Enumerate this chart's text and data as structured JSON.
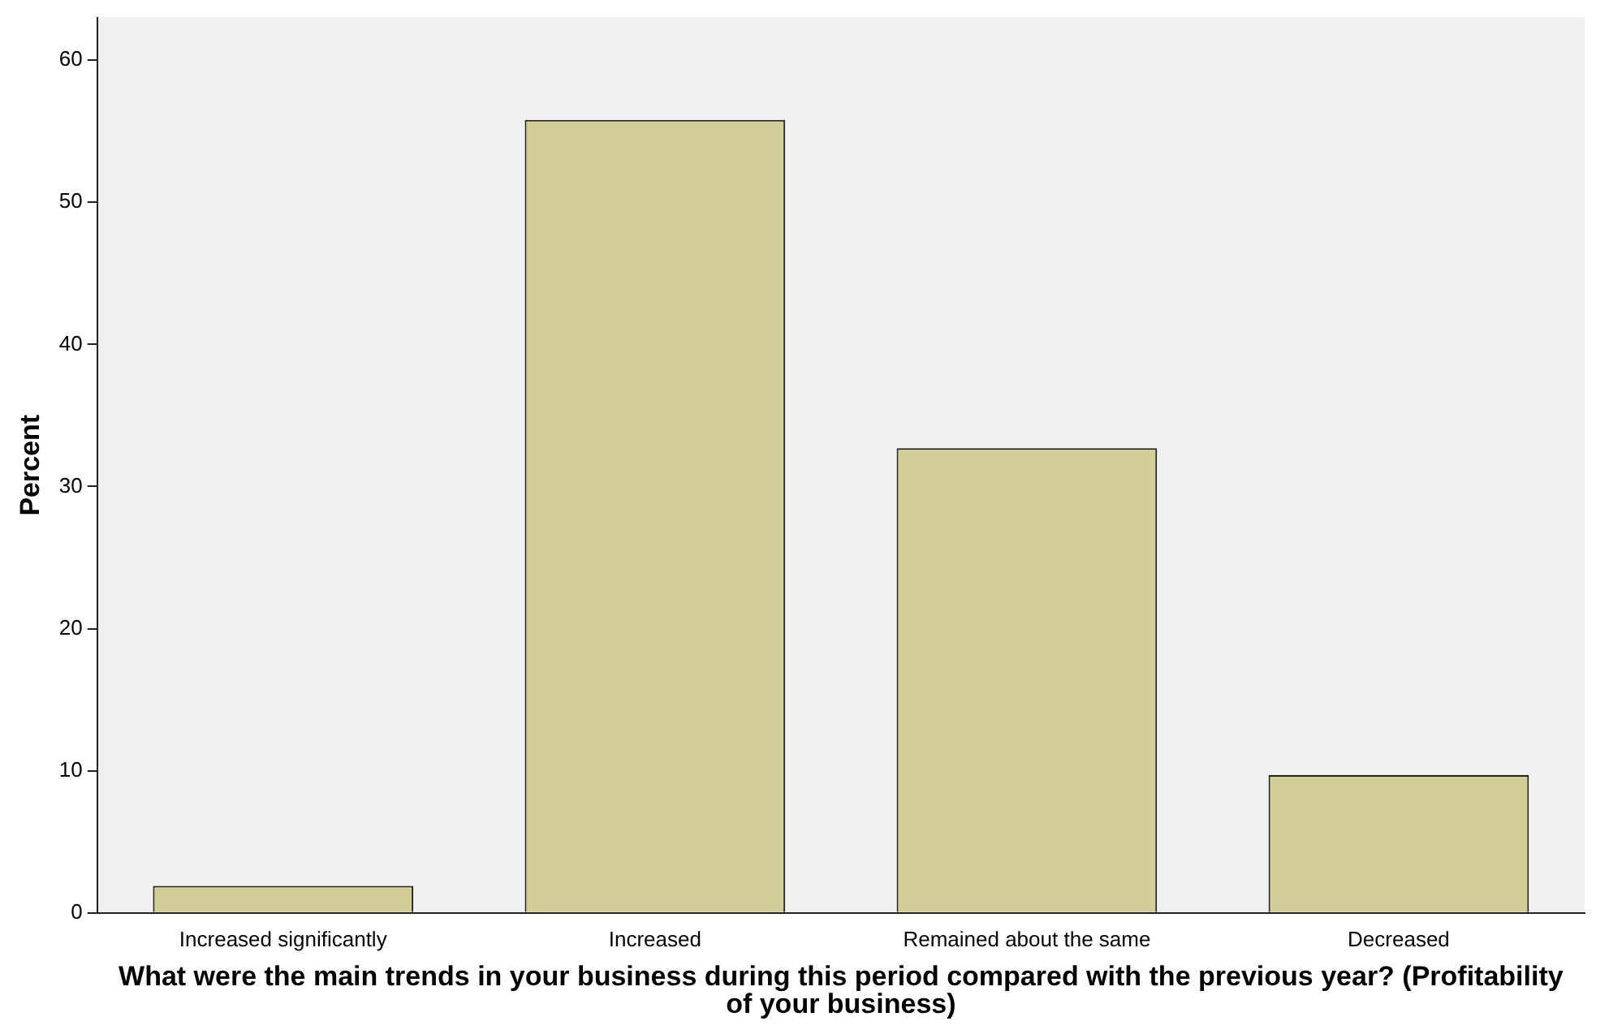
{
  "chart_data": {
    "type": "bar",
    "xlabel": "What were the main trends in your business during this period compared with the previous year? (Profitability of your business)",
    "ylabel": "Percent",
    "categories": [
      "Increased significantly",
      "Increased",
      "Remained about the same",
      "Decreased"
    ],
    "values": [
      1.9,
      55.8,
      32.7,
      9.7
    ],
    "color": "#d3ce97",
    "ylim": [
      0,
      63
    ],
    "yticks": [
      0,
      10,
      20,
      30,
      40,
      50,
      60
    ],
    "grid": false,
    "legend": false
  }
}
